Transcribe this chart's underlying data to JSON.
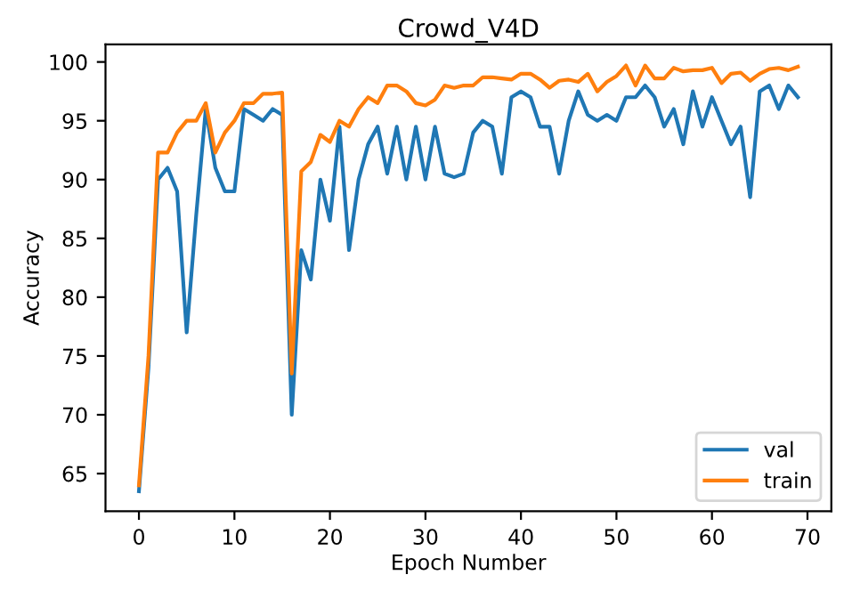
{
  "chart_data": {
    "type": "line",
    "title": "Crowd_V4D",
    "xlabel": "Epoch Number",
    "ylabel": "Accuracy",
    "x": [
      0,
      1,
      2,
      3,
      4,
      5,
      6,
      7,
      8,
      9,
      10,
      11,
      12,
      13,
      14,
      15,
      16,
      17,
      18,
      19,
      20,
      21,
      22,
      23,
      24,
      25,
      26,
      27,
      28,
      29,
      30,
      31,
      32,
      33,
      34,
      35,
      36,
      37,
      38,
      39,
      40,
      41,
      42,
      43,
      44,
      45,
      46,
      47,
      48,
      49,
      50,
      51,
      52,
      53,
      54,
      55,
      56,
      57,
      58,
      59,
      60,
      61,
      62,
      63,
      64,
      65,
      66,
      67,
      68,
      69
    ],
    "series": [
      {
        "name": "val",
        "color": "#1f77b4",
        "values": [
          63.5,
          74,
          90,
          91,
          89,
          77,
          87,
          96,
          91,
          89,
          89,
          96,
          95.5,
          95,
          96,
          95.5,
          70,
          84,
          81.5,
          90,
          86.5,
          94.5,
          84,
          90,
          93,
          94.5,
          90.5,
          94.5,
          90,
          94.5,
          90,
          94.5,
          90.5,
          90.2,
          90.5,
          94,
          95,
          94.5,
          90.5,
          97,
          97.5,
          97,
          94.5,
          94.5,
          90.5,
          95,
          97.5,
          95.5,
          95,
          95.5,
          95,
          97,
          97,
          98,
          97,
          94.5,
          96,
          93,
          97.5,
          94.5,
          97,
          95,
          93,
          94.5,
          88.5,
          97.5,
          98,
          96,
          98,
          97
        ]
      },
      {
        "name": "train",
        "color": "#ff7f0e",
        "values": [
          64,
          75,
          92.3,
          92.3,
          94,
          95,
          95,
          96.5,
          92.3,
          94,
          95,
          96.5,
          96.5,
          97.3,
          97.3,
          97.4,
          73.5,
          90.7,
          91.5,
          93.8,
          93.2,
          95,
          94.5,
          96,
          97,
          96.5,
          98,
          98,
          97.5,
          96.5,
          96.3,
          96.8,
          98,
          97.8,
          98,
          98,
          98.7,
          98.7,
          98.6,
          98.5,
          99,
          99,
          98.5,
          97.8,
          98.4,
          98.5,
          98.3,
          99,
          97.5,
          98.3,
          98.8,
          99.7,
          98,
          99.7,
          98.6,
          98.6,
          99.5,
          99.2,
          99.3,
          99.3,
          99.5,
          98.2,
          99,
          99.1,
          98.4,
          99,
          99.4,
          99.5,
          99.3,
          99.6
        ]
      }
    ],
    "xlim": [
      -3.5,
      72.5
    ],
    "ylim": [
      61.8,
      101.5
    ],
    "xticks": [
      0,
      10,
      20,
      30,
      40,
      50,
      60,
      70
    ],
    "yticks": [
      65,
      70,
      75,
      80,
      85,
      90,
      95,
      100
    ],
    "legend": "lower right",
    "grid": false
  }
}
